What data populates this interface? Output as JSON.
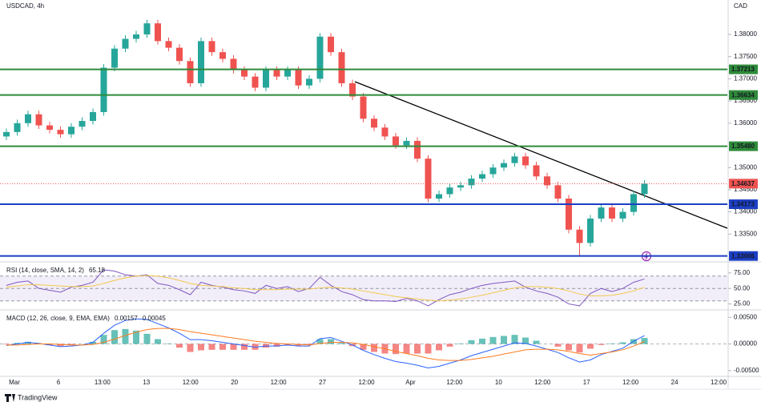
{
  "chart_data": [
    {
      "type": "candlestick",
      "title": "USDCAD, 4h",
      "currency": "CAD",
      "up_color": "#26a69a",
      "down_color": "#ef5350",
      "open": [
        1.357,
        1.358,
        1.36,
        1.362,
        1.3595,
        1.3585,
        1.3575,
        1.3592,
        1.3605,
        1.3625,
        1.3725,
        1.3768,
        1.379,
        1.38,
        1.3825,
        1.3785,
        1.377,
        1.374,
        1.369,
        1.3785,
        1.376,
        1.3745,
        1.372,
        1.3705,
        1.368,
        1.372,
        1.3705,
        1.372,
        1.3685,
        1.37,
        1.3795,
        1.376,
        1.369,
        1.366,
        1.361,
        1.359,
        1.357,
        1.355,
        1.356,
        1.352,
        1.343,
        1.344,
        1.3455,
        1.346,
        1.3475,
        1.3485,
        1.35,
        1.351,
        1.3525,
        1.3505,
        1.348,
        1.346,
        1.343,
        1.336,
        1.333,
        1.3385,
        1.341,
        1.3385,
        1.34,
        1.344
      ],
      "high": [
        1.3588,
        1.3608,
        1.3628,
        1.3628,
        1.3603,
        1.3593,
        1.36,
        1.3613,
        1.3633,
        1.3733,
        1.3776,
        1.3798,
        1.3808,
        1.3833,
        1.3833,
        1.3793,
        1.3778,
        1.3748,
        1.3793,
        1.3793,
        1.3768,
        1.3753,
        1.3728,
        1.3713,
        1.3728,
        1.3728,
        1.3728,
        1.3728,
        1.3708,
        1.3803,
        1.3803,
        1.3768,
        1.3698,
        1.3668,
        1.3618,
        1.3598,
        1.3578,
        1.3568,
        1.3568,
        1.3528,
        1.3448,
        1.3463,
        1.3468,
        1.3483,
        1.3493,
        1.3508,
        1.3518,
        1.3533,
        1.3533,
        1.3513,
        1.3488,
        1.3468,
        1.3438,
        1.3368,
        1.3393,
        1.3418,
        1.3418,
        1.3408,
        1.3448,
        1.3472
      ],
      "low": [
        1.3562,
        1.3572,
        1.3592,
        1.3587,
        1.3577,
        1.3567,
        1.3567,
        1.3584,
        1.3597,
        1.3617,
        1.3717,
        1.376,
        1.3782,
        1.3792,
        1.3777,
        1.3762,
        1.3732,
        1.3682,
        1.3682,
        1.3752,
        1.3737,
        1.3712,
        1.3697,
        1.3672,
        1.3672,
        1.3697,
        1.3697,
        1.3677,
        1.3677,
        1.3692,
        1.3752,
        1.3682,
        1.3652,
        1.3602,
        1.3582,
        1.3562,
        1.3542,
        1.3542,
        1.3512,
        1.3422,
        1.3422,
        1.3432,
        1.3447,
        1.3452,
        1.3467,
        1.3477,
        1.3492,
        1.3502,
        1.3497,
        1.3472,
        1.3452,
        1.3422,
        1.3352,
        1.3301,
        1.3322,
        1.3377,
        1.3377,
        1.3377,
        1.3392,
        1.3432
      ],
      "close": [
        1.358,
        1.36,
        1.362,
        1.3595,
        1.3585,
        1.3575,
        1.3592,
        1.3605,
        1.3625,
        1.3725,
        1.3768,
        1.379,
        1.38,
        1.3825,
        1.3785,
        1.377,
        1.374,
        1.369,
        1.3785,
        1.376,
        1.3745,
        1.372,
        1.3705,
        1.368,
        1.372,
        1.3705,
        1.372,
        1.3685,
        1.37,
        1.3795,
        1.376,
        1.369,
        1.366,
        1.361,
        1.359,
        1.357,
        1.355,
        1.356,
        1.352,
        1.343,
        1.344,
        1.3455,
        1.346,
        1.3475,
        1.3485,
        1.35,
        1.351,
        1.3525,
        1.3505,
        1.348,
        1.346,
        1.343,
        1.336,
        1.333,
        1.3385,
        1.341,
        1.3385,
        1.34,
        1.344,
        1.34637
      ],
      "ylim": [
        1.3291,
        1.38776
      ],
      "yticks": [
        {
          "value": 1.38,
          "label": "1.38000"
        },
        {
          "value": 1.375,
          "label": "1.37500"
        },
        {
          "value": 1.37,
          "label": "1.37000"
        },
        {
          "value": 1.365,
          "label": "1.36500"
        },
        {
          "value": 1.36,
          "label": "1.36000"
        },
        {
          "value": 1.35,
          "label": "1.35000"
        },
        {
          "value": 1.345,
          "label": "1.34500"
        },
        {
          "value": 1.34,
          "label": "1.34000"
        },
        {
          "value": 1.335,
          "label": "1.33500"
        }
      ],
      "levels": [
        {
          "value": 1.37213,
          "label": "1.37213",
          "color": "#2e8b3a"
        },
        {
          "value": 1.36634,
          "label": "1.36634",
          "color": "#2e8b3a"
        },
        {
          "value": 1.3548,
          "label": "1.35480",
          "color": "#2e8b3a"
        },
        {
          "value": 1.34173,
          "label": "1.34173",
          "color": "#1c3fc4"
        },
        {
          "value": 1.33006,
          "label": "1.33006",
          "color": "#1c3fc4"
        }
      ],
      "last_price": {
        "value": 1.34637,
        "label": "1.34637",
        "color": "#ef5350"
      },
      "x_axis_labels": [
        "Mar",
        "6",
        "13:00",
        "13",
        "12:00",
        "20",
        "12:00",
        "27",
        "12:00",
        "Apr",
        "12:00",
        "10",
        "12:00",
        "17",
        "12:00",
        "24",
        "12:00"
      ]
    },
    {
      "type": "line",
      "title": "RSI (14, close, SMA, 14, 2)",
      "ylim": [
        18,
        89
      ],
      "yticks": [
        {
          "value": 75,
          "label": "75.00"
        },
        {
          "value": 50,
          "label": "50.00"
        },
        {
          "value": 25,
          "label": "25.00"
        }
      ],
      "band": [
        30,
        70
      ],
      "midline": 50,
      "band_color": "#7e57c2",
      "series": [
        {
          "color": "#7e57c2",
          "values": [
            55,
            60,
            62,
            50,
            47,
            44,
            52,
            55,
            60,
            80,
            78,
            72,
            70,
            72,
            58,
            55,
            48,
            40,
            60,
            55,
            52,
            48,
            46,
            42,
            55,
            50,
            53,
            45,
            50,
            68,
            55,
            45,
            40,
            32,
            30,
            30,
            29,
            34,
            30,
            22,
            32,
            40,
            44,
            50,
            55,
            58,
            60,
            62,
            52,
            46,
            42,
            36,
            25,
            22,
            42,
            50,
            45,
            50,
            60,
            65.18
          ]
        },
        {
          "color": "#f2c94c",
          "values": [
            52,
            54,
            56,
            56,
            55,
            54,
            53,
            53,
            54,
            58,
            63,
            67,
            70,
            71,
            70,
            67,
            63,
            58,
            55,
            54,
            53,
            51,
            50,
            48,
            48,
            48,
            49,
            49,
            49,
            51,
            52,
            51,
            49,
            46,
            43,
            40,
            37,
            35,
            33,
            31,
            30,
            31,
            33,
            36,
            39,
            43,
            47,
            51,
            53,
            53,
            52,
            50,
            46,
            41,
            38,
            38,
            39,
            42,
            46,
            52
          ]
        }
      ]
    },
    {
      "type": "macd",
      "title": "MACD (12, 26, close, 9, EMA, EMA)",
      "ylim": [
        -0.00608,
        0.00623
      ],
      "yticks": [
        {
          "value": 0.005,
          "label": "0.00500"
        },
        {
          "value": 0,
          "label": "0.00000"
        },
        {
          "value": -0.005,
          "label": "-0.00500"
        }
      ],
      "histogram": {
        "up_color": "#26a69a",
        "down_color": "#ef5350",
        "values": [
          -0.0001,
          0.0002,
          0.0004,
          0.0001,
          -0.0002,
          -0.0004,
          -0.0002,
          0,
          0.0004,
          0.0017,
          0.0026,
          0.0028,
          0.0025,
          0.0019,
          0.0009,
          0.0001,
          -0.0007,
          -0.0015,
          -0.0012,
          -0.0011,
          -0.0011,
          -0.0011,
          -0.0011,
          -0.0011,
          -0.0007,
          -0.0005,
          -0.0002,
          -0.0003,
          -0.0002,
          0.0009,
          0.0009,
          0.0002,
          -0.0004,
          -0.0011,
          -0.0015,
          -0.0018,
          -0.0019,
          -0.0018,
          -0.0018,
          -0.0018,
          -0.0012,
          -0.0005,
          0.0001,
          0.0007,
          0.001,
          0.0013,
          0.0015,
          0.0017,
          0.0012,
          0.0006,
          0,
          -0.0005,
          -0.0012,
          -0.0016,
          -0.0009,
          -0.0002,
          0.0001,
          0.0003,
          0.0009,
          0.00112
        ]
      },
      "series": [
        {
          "color": "#2962ff",
          "values": [
            -0.0003,
            0,
            0.0003,
            0.0001,
            -0.0002,
            -0.0005,
            -0.0004,
            -0.0002,
            0.0003,
            0.002,
            0.0035,
            0.0044,
            0.0047,
            0.0046,
            0.0038,
            0.003,
            0.002,
            0.0008,
            0.0008,
            0.0006,
            0.0003,
            0,
            -0.0003,
            -0.0006,
            -0.0004,
            -0.0004,
            -0.0002,
            -0.0004,
            -0.0004,
            0.001,
            0.0012,
            0.0005,
            -0.0002,
            -0.0012,
            -0.002,
            -0.0027,
            -0.0033,
            -0.0036,
            -0.004,
            -0.0045,
            -0.0042,
            -0.0036,
            -0.003,
            -0.0022,
            -0.0016,
            -0.001,
            -0.0004,
            0.0002,
            0.0001,
            -0.0004,
            -0.001,
            -0.0016,
            -0.0026,
            -0.0034,
            -0.003,
            -0.002,
            -0.0014,
            -0.0008,
            0.0005,
            0.00157
          ]
        },
        {
          "color": "#ff7c1f",
          "values": [
            -0.0002,
            -0.0002,
            -0.0001,
            0,
            0,
            -0.0001,
            -0.0002,
            -0.0002,
            -0.0001,
            0.0003,
            0.0009,
            0.0016,
            0.0022,
            0.0027,
            0.0029,
            0.0029,
            0.0027,
            0.0023,
            0.002,
            0.0017,
            0.0014,
            0.0011,
            0.0008,
            0.0005,
            0.0003,
            0.0001,
            0,
            -0.0001,
            -0.0002,
            0.0001,
            0.0003,
            0.0003,
            0.0002,
            -0.0001,
            -0.0005,
            -0.0009,
            -0.0014,
            -0.0018,
            -0.0022,
            -0.0027,
            -0.003,
            -0.0031,
            -0.0031,
            -0.0029,
            -0.0026,
            -0.0023,
            -0.0019,
            -0.0015,
            -0.0011,
            -0.001,
            -0.001,
            -0.0011,
            -0.0014,
            -0.0018,
            -0.0021,
            -0.0018,
            -0.0015,
            -0.0011,
            -0.0004,
            0.00045
          ]
        }
      ]
    }
  ],
  "footer": {
    "brand": "TradingView"
  }
}
